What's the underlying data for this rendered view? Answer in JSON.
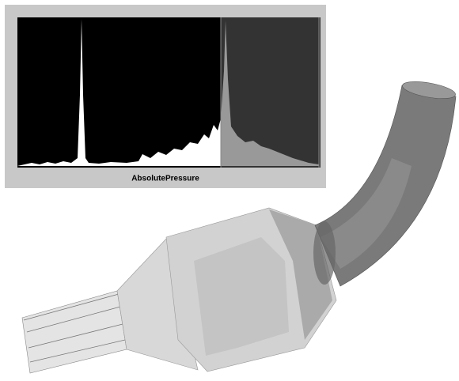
{
  "histogram": {
    "label": "AbsolutePressure"
  }
}
